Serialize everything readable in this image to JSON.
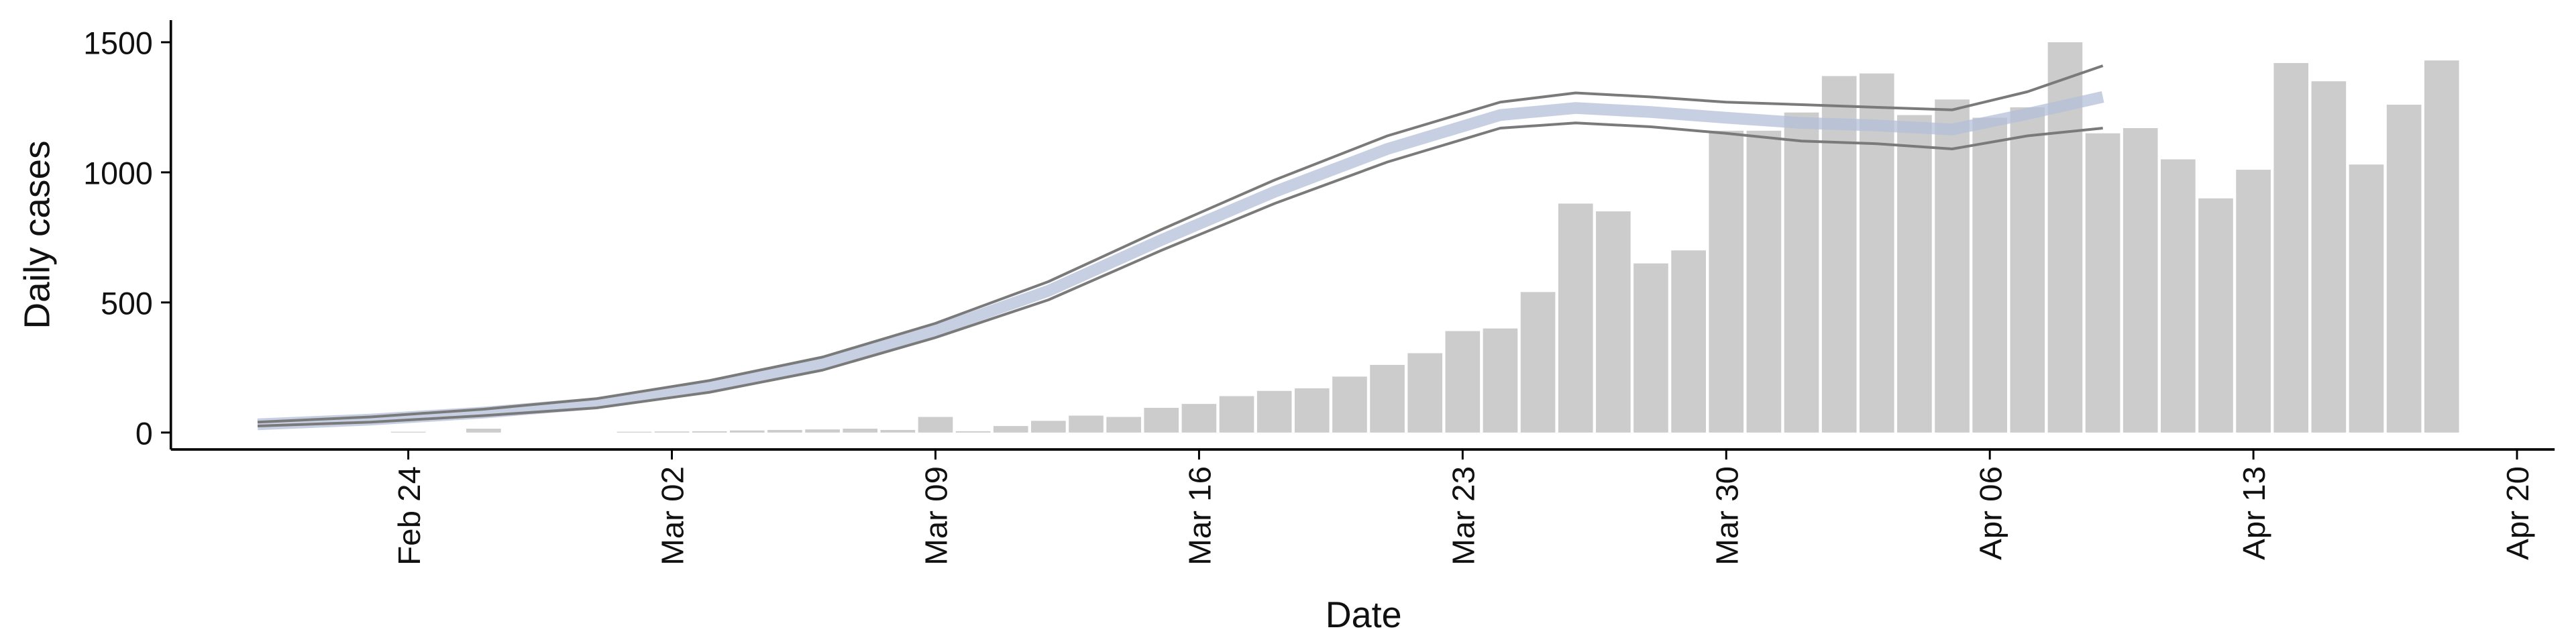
{
  "chart_data": {
    "type": "bar",
    "x_label": "Date",
    "y_label": "Daily cases",
    "categories": [
      "Feb 24",
      "Feb 25",
      "Feb 26",
      "Feb 27",
      "Feb 28",
      "Feb 29",
      "Mar 01",
      "Mar 02",
      "Mar 03",
      "Mar 04",
      "Mar 05",
      "Mar 06",
      "Mar 07",
      "Mar 08",
      "Mar 09",
      "Mar 10",
      "Mar 11",
      "Mar 12",
      "Mar 13",
      "Mar 14",
      "Mar 15",
      "Mar 16",
      "Mar 17",
      "Mar 18",
      "Mar 19",
      "Mar 20",
      "Mar 21",
      "Mar 22",
      "Mar 23",
      "Mar 24",
      "Mar 25",
      "Mar 26",
      "Mar 27",
      "Mar 28",
      "Mar 29",
      "Mar 30",
      "Mar 31",
      "Apr 01",
      "Apr 02",
      "Apr 03",
      "Apr 04",
      "Apr 05",
      "Apr 06",
      "Apr 07",
      "Apr 08",
      "Apr 09",
      "Apr 10",
      "Apr 11",
      "Apr 12",
      "Apr 13",
      "Apr 14",
      "Apr 15",
      "Apr 16",
      "Apr 17",
      "Apr 18"
    ],
    "values": [
      3,
      0,
      15,
      0,
      0,
      0,
      3,
      4,
      5,
      8,
      10,
      12,
      15,
      10,
      60,
      5,
      25,
      45,
      65,
      60,
      95,
      110,
      140,
      160,
      170,
      215,
      260,
      305,
      390,
      400,
      540,
      880,
      850,
      650,
      700,
      1160,
      1160,
      1230,
      1370,
      1380,
      1220,
      1280,
      1210,
      1250,
      1500,
      1150,
      1170,
      1050,
      900,
      1010,
      1420,
      1350,
      1030,
      1260,
      1430
    ],
    "color": "#cccccc",
    "xlim": [
      "Feb 18",
      "Apr 21"
    ],
    "xticks": [
      "Feb 24",
      "Mar 02",
      "Mar 09",
      "Mar 16",
      "Mar 23",
      "Mar 30",
      "Apr 06",
      "Apr 13",
      "Apr 20"
    ],
    "ylim": [
      -65,
      1585
    ],
    "yticks": [
      0,
      500,
      1000,
      1500
    ],
    "overlay": {
      "type": "line",
      "x": [
        "Feb 20",
        "Feb 23",
        "Feb 26",
        "Feb 29",
        "Mar 03",
        "Mar 06",
        "Mar 09",
        "Mar 12",
        "Mar 15",
        "Mar 18",
        "Mar 21",
        "Mar 24",
        "Mar 26",
        "Mar 28",
        "Mar 30",
        "Apr 01",
        "Apr 03",
        "Apr 05",
        "Apr 07",
        "Apr 09"
      ],
      "series": [
        {
          "color": "#b4bfd8",
          "values": [
            32,
            50,
            77,
            112,
            177,
            265,
            392,
            545,
            740,
            925,
            1090,
            1220,
            1247,
            1232,
            1210,
            1190,
            1180,
            1165,
            1225,
            1290
          ]
        },
        {
          "color": "#7a7a7a",
          "values": [
            40,
            60,
            90,
            130,
            200,
            290,
            420,
            580,
            780,
            970,
            1140,
            1270,
            1305,
            1290,
            1270,
            1260,
            1250,
            1240,
            1310,
            1410
          ]
        },
        {
          "color": "#7a7a7a",
          "values": [
            25,
            40,
            65,
            95,
            155,
            240,
            365,
            510,
            700,
            880,
            1040,
            1170,
            1190,
            1175,
            1150,
            1120,
            1110,
            1090,
            1140,
            1170
          ]
        }
      ]
    }
  }
}
